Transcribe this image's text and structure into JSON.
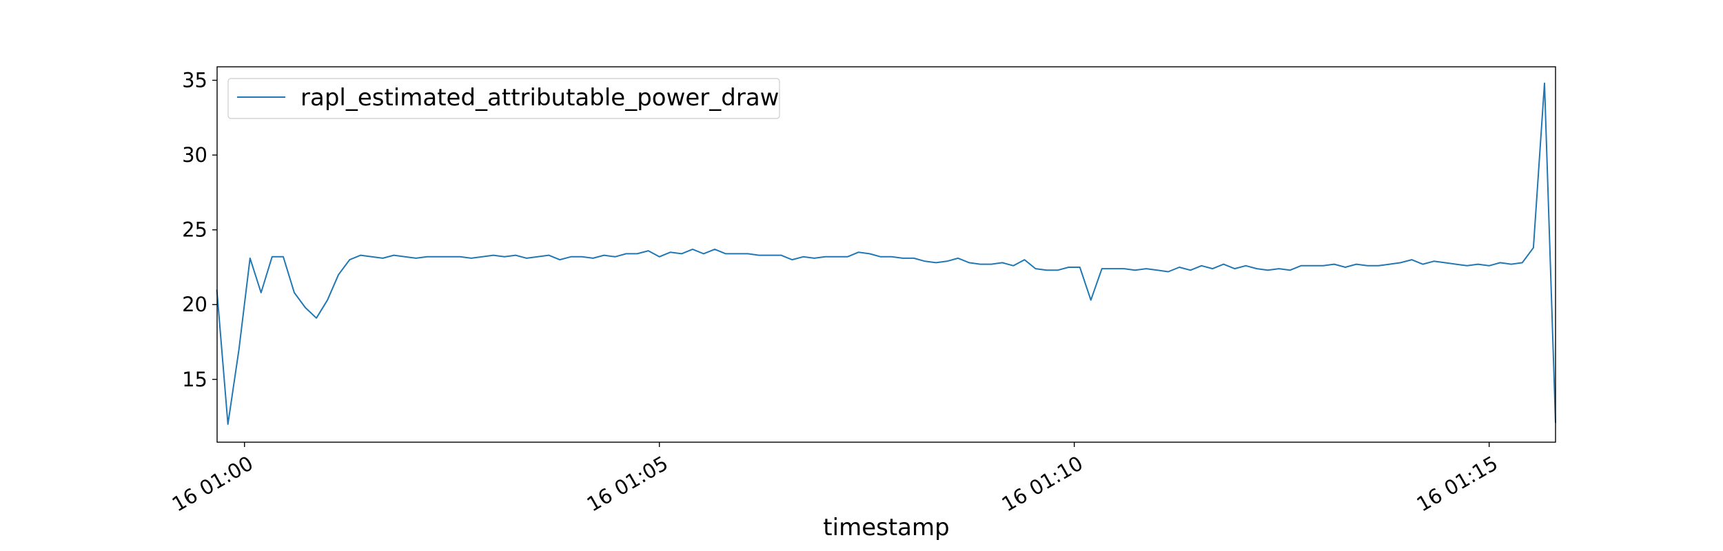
{
  "chart_data": {
    "type": "line",
    "xlabel": "timestamp",
    "ylabel": "",
    "title": "",
    "ylim": [
      10.8,
      35.9
    ],
    "yticks": [
      15,
      20,
      25,
      30,
      35
    ],
    "x_unit": "minutes after 16 01:00",
    "xlim": [
      -0.33,
      15.8
    ],
    "xtick_values": [
      0,
      5,
      10,
      15
    ],
    "xtick_labels": [
      "16 01:00",
      "16 01:05",
      "16 01:10",
      "16 01:15"
    ],
    "legend": {
      "position": "upper-left"
    },
    "grid": false,
    "series": [
      {
        "name": "rapl_estimated_attributable_power_draw",
        "color": "#1f77b4",
        "x": [
          -0.333,
          -0.2,
          -0.067,
          0.067,
          0.2,
          0.333,
          0.467,
          0.6,
          0.733,
          0.867,
          1.0,
          1.133,
          1.267,
          1.4,
          1.533,
          1.667,
          1.8,
          1.933,
          2.067,
          2.2,
          2.333,
          2.467,
          2.6,
          2.733,
          2.867,
          3.0,
          3.133,
          3.267,
          3.4,
          3.533,
          3.667,
          3.8,
          3.933,
          4.067,
          4.2,
          4.333,
          4.467,
          4.6,
          4.733,
          4.867,
          5.0,
          5.133,
          5.267,
          5.4,
          5.533,
          5.667,
          5.8,
          5.933,
          6.067,
          6.2,
          6.333,
          6.467,
          6.6,
          6.733,
          6.867,
          7.0,
          7.133,
          7.267,
          7.4,
          7.533,
          7.667,
          7.8,
          7.933,
          8.067,
          8.2,
          8.333,
          8.467,
          8.6,
          8.733,
          8.867,
          9.0,
          9.133,
          9.267,
          9.4,
          9.533,
          9.667,
          9.8,
          9.933,
          10.067,
          10.2,
          10.333,
          10.467,
          10.6,
          10.733,
          10.867,
          11.0,
          11.133,
          11.267,
          11.4,
          11.533,
          11.667,
          11.8,
          11.933,
          12.067,
          12.2,
          12.333,
          12.467,
          12.6,
          12.733,
          12.867,
          13.0,
          13.133,
          13.267,
          13.4,
          13.533,
          13.667,
          13.8,
          13.933,
          14.067,
          14.2,
          14.333,
          14.467,
          14.6,
          14.733,
          14.867,
          15.0,
          15.133,
          15.267,
          15.4,
          15.533,
          15.667,
          15.8
        ],
        "y": [
          21.0,
          12.0,
          17.0,
          23.1,
          20.8,
          23.2,
          23.2,
          20.8,
          19.8,
          19.1,
          20.3,
          22.0,
          23.0,
          23.3,
          23.2,
          23.1,
          23.3,
          23.2,
          23.1,
          23.2,
          23.2,
          23.2,
          23.2,
          23.1,
          23.2,
          23.3,
          23.2,
          23.3,
          23.1,
          23.2,
          23.3,
          23.0,
          23.2,
          23.2,
          23.1,
          23.3,
          23.2,
          23.4,
          23.4,
          23.6,
          23.2,
          23.5,
          23.4,
          23.7,
          23.4,
          23.7,
          23.4,
          23.4,
          23.4,
          23.3,
          23.3,
          23.3,
          23.0,
          23.2,
          23.1,
          23.2,
          23.2,
          23.2,
          23.5,
          23.4,
          23.2,
          23.2,
          23.1,
          23.1,
          22.9,
          22.8,
          22.9,
          23.1,
          22.8,
          22.7,
          22.7,
          22.8,
          22.6,
          23.0,
          22.4,
          22.3,
          22.3,
          22.5,
          22.5,
          20.3,
          22.4,
          22.4,
          22.4,
          22.3,
          22.4,
          22.3,
          22.2,
          22.5,
          22.3,
          22.6,
          22.4,
          22.7,
          22.4,
          22.6,
          22.4,
          22.3,
          22.4,
          22.3,
          22.6,
          22.6,
          22.6,
          22.7,
          22.5,
          22.7,
          22.6,
          22.6,
          22.7,
          22.8,
          23.0,
          22.7,
          22.9,
          22.8,
          22.7,
          22.6,
          22.7,
          22.6,
          22.8,
          22.7,
          22.8,
          23.8,
          34.8,
          12.1
        ]
      }
    ]
  }
}
